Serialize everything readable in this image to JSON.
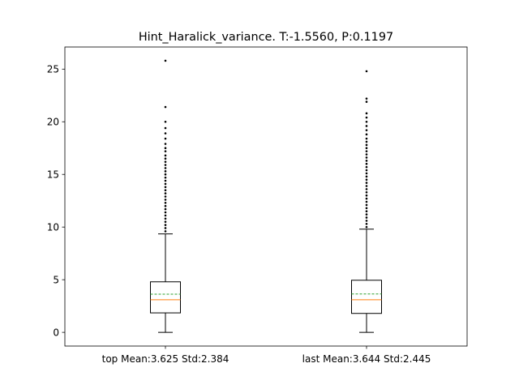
{
  "chart_data": {
    "type": "boxplot",
    "title": "Hint_Haralick_variance. T:-1.5560, P:0.1197",
    "xlabel": "",
    "ylabel": "",
    "ylim": [
      -1.3,
      27.1
    ],
    "yticks": [
      0,
      5,
      10,
      15,
      20,
      25
    ],
    "grid": false,
    "colors": {
      "box": "#000000",
      "median": "#ff7f0e",
      "mean": "#2ca02c",
      "flier": "#000000"
    },
    "boxes": [
      {
        "label": "top Mean:3.625 Std:2.384",
        "whisker_low": 0.0,
        "q1": 1.85,
        "median": 3.1,
        "q3": 4.8,
        "whisker_high": 9.35,
        "mean": 3.625,
        "fliers": [
          9.6,
          9.9,
          10.2,
          10.5,
          10.8,
          11.1,
          11.4,
          11.7,
          12.0,
          12.3,
          12.6,
          12.9,
          13.2,
          13.5,
          13.8,
          14.1,
          14.4,
          14.7,
          15.0,
          15.3,
          15.6,
          15.9,
          16.2,
          16.5,
          16.8,
          17.2,
          17.5,
          17.9,
          18.4,
          18.9,
          19.4,
          20.0,
          21.4,
          25.8
        ]
      },
      {
        "label": "last Mean:3.644 Std:2.445",
        "whisker_low": 0.0,
        "q1": 1.8,
        "median": 3.1,
        "q3": 4.95,
        "whisker_high": 9.8,
        "mean": 3.644,
        "fliers": [
          10.0,
          10.3,
          10.6,
          10.9,
          11.2,
          11.5,
          11.8,
          12.1,
          12.4,
          12.7,
          13.0,
          13.3,
          13.6,
          13.9,
          14.2,
          14.5,
          14.8,
          15.1,
          15.4,
          15.7,
          16.0,
          16.3,
          16.6,
          16.9,
          17.2,
          17.5,
          17.8,
          18.1,
          18.4,
          18.8,
          19.2,
          19.6,
          20.0,
          20.4,
          20.8,
          21.9,
          22.2,
          24.8
        ]
      }
    ]
  }
}
